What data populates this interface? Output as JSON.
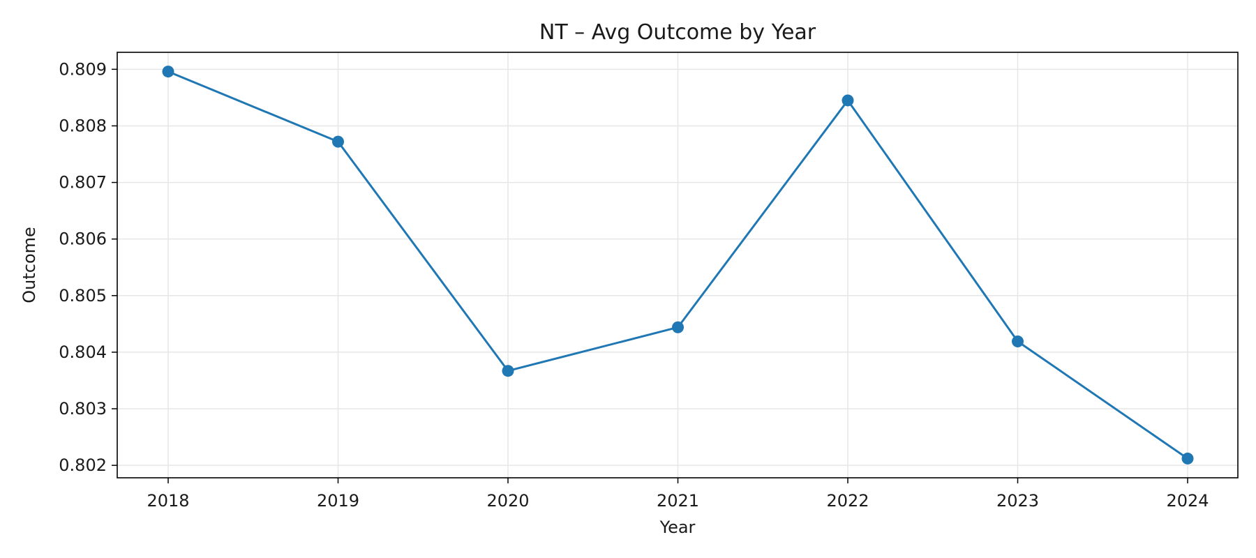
{
  "chart_data": {
    "type": "line",
    "title": "NT – Avg Outcome by Year",
    "xlabel": "Year",
    "ylabel": "Outcome",
    "x": [
      "2018",
      "2019",
      "2020",
      "2021",
      "2022",
      "2023",
      "2024"
    ],
    "xticks": [
      "2018",
      "2019",
      "2020",
      "2021",
      "2022",
      "2023",
      "2024"
    ],
    "yticks": [
      "0.802",
      "0.803",
      "0.804",
      "0.805",
      "0.806",
      "0.807",
      "0.808",
      "0.809"
    ],
    "ylim": [
      0.80178,
      0.8093
    ],
    "grid": true,
    "series": [
      {
        "values": [
          0.80896,
          0.80772,
          0.80367,
          0.80444,
          0.80845,
          0.80419,
          0.80212
        ],
        "color": "#1f77b4"
      }
    ]
  }
}
